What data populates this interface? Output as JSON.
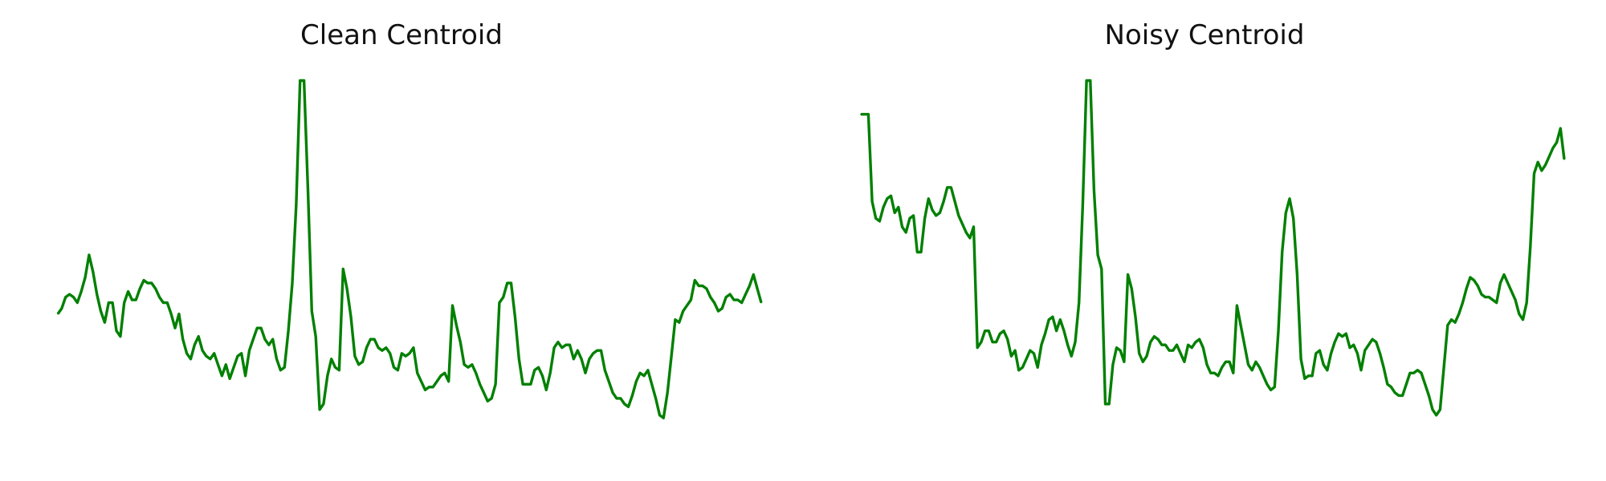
{
  "chart_data": [
    {
      "type": "line",
      "title": "Clean Centroid",
      "xlabel": "",
      "ylabel": "",
      "axes_visible": false,
      "grid": false,
      "ylim": [
        -0.3,
        1.0
      ],
      "series": [
        {
          "color": "#008000",
          "y": [
            0.16,
            0.18,
            0.22,
            0.23,
            0.22,
            0.2,
            0.24,
            0.29,
            0.37,
            0.31,
            0.23,
            0.17,
            0.13,
            0.2,
            0.2,
            0.1,
            0.08,
            0.2,
            0.24,
            0.21,
            0.21,
            0.25,
            0.28,
            0.27,
            0.27,
            0.25,
            0.22,
            0.2,
            0.2,
            0.16,
            0.11,
            0.16,
            0.07,
            0.02,
            0.0,
            0.05,
            0.08,
            0.03,
            0.01,
            0.0,
            0.02,
            -0.02,
            -0.06,
            -0.02,
            -0.07,
            -0.03,
            0.01,
            0.02,
            -0.06,
            0.03,
            0.07,
            0.11,
            0.11,
            0.07,
            0.05,
            0.07,
            0.0,
            -0.04,
            -0.03,
            0.1,
            0.27,
            0.55,
            0.99,
            0.99,
            0.6,
            0.17,
            0.08,
            -0.18,
            -0.16,
            -0.06,
            0.0,
            -0.03,
            -0.04,
            0.32,
            0.25,
            0.15,
            0.01,
            -0.02,
            -0.01,
            0.04,
            0.07,
            0.07,
            0.04,
            0.03,
            0.04,
            0.02,
            -0.03,
            -0.04,
            0.02,
            0.01,
            0.02,
            0.04,
            -0.05,
            -0.08,
            -0.11,
            -0.1,
            -0.1,
            -0.08,
            -0.06,
            -0.05,
            -0.08,
            0.19,
            0.12,
            0.06,
            -0.02,
            -0.03,
            -0.02,
            -0.05,
            -0.09,
            -0.12,
            -0.15,
            -0.14,
            -0.09,
            0.2,
            0.22,
            0.27,
            0.27,
            0.15,
            0.0,
            -0.09,
            -0.09,
            -0.09,
            -0.04,
            -0.03,
            -0.06,
            -0.11,
            -0.05,
            0.04,
            0.06,
            0.04,
            0.05,
            0.05,
            0.0,
            0.03,
            0.0,
            -0.05,
            0.0,
            0.02,
            0.03,
            0.03,
            -0.04,
            -0.08,
            -0.12,
            -0.14,
            -0.14,
            -0.16,
            -0.17,
            -0.13,
            -0.08,
            -0.05,
            -0.06,
            -0.04,
            -0.09,
            -0.14,
            -0.2,
            -0.21,
            -0.12,
            0.01,
            0.14,
            0.13,
            0.17,
            0.19,
            0.21,
            0.28,
            0.26,
            0.26,
            0.25,
            0.22,
            0.2,
            0.17,
            0.18,
            0.22,
            0.23,
            0.21,
            0.21,
            0.2,
            0.23,
            0.26,
            0.3,
            0.25,
            0.2
          ]
        }
      ]
    },
    {
      "type": "line",
      "title": "Noisy Centroid",
      "xlabel": "",
      "ylabel": "",
      "axes_visible": false,
      "grid": false,
      "ylim": [
        -0.3,
        1.0
      ],
      "series": [
        {
          "color": "#008000",
          "y": [
            0.87,
            0.87,
            0.87,
            0.56,
            0.5,
            0.49,
            0.54,
            0.57,
            0.58,
            0.52,
            0.54,
            0.47,
            0.45,
            0.5,
            0.51,
            0.38,
            0.38,
            0.5,
            0.57,
            0.53,
            0.51,
            0.52,
            0.56,
            0.61,
            0.61,
            0.56,
            0.51,
            0.48,
            0.45,
            0.43,
            0.47,
            0.04,
            0.06,
            0.1,
            0.1,
            0.06,
            0.06,
            0.09,
            0.1,
            0.07,
            0.01,
            0.03,
            -0.04,
            -0.03,
            0.0,
            0.03,
            0.02,
            -0.03,
            0.05,
            0.09,
            0.14,
            0.15,
            0.1,
            0.14,
            0.1,
            0.05,
            0.01,
            0.06,
            0.2,
            0.55,
            0.99,
            0.99,
            0.6,
            0.37,
            0.32,
            -0.16,
            -0.16,
            -0.02,
            0.04,
            0.03,
            -0.01,
            0.3,
            0.25,
            0.15,
            0.02,
            -0.01,
            0.01,
            0.06,
            0.08,
            0.07,
            0.05,
            0.05,
            0.03,
            0.03,
            0.05,
            0.02,
            -0.01,
            0.05,
            0.04,
            0.06,
            0.07,
            0.04,
            -0.02,
            -0.05,
            -0.05,
            -0.06,
            -0.03,
            -0.01,
            -0.01,
            -0.05,
            0.19,
            0.12,
            0.05,
            -0.02,
            -0.04,
            -0.01,
            -0.03,
            -0.06,
            -0.09,
            -0.11,
            -0.1,
            0.1,
            0.38,
            0.52,
            0.57,
            0.5,
            0.3,
            0.0,
            -0.07,
            -0.06,
            -0.06,
            0.02,
            0.03,
            -0.02,
            -0.04,
            0.02,
            0.06,
            0.09,
            0.08,
            0.09,
            0.04,
            0.05,
            0.02,
            -0.04,
            0.03,
            0.05,
            0.07,
            0.06,
            0.02,
            -0.03,
            -0.09,
            -0.1,
            -0.12,
            -0.13,
            -0.13,
            -0.09,
            -0.05,
            -0.05,
            -0.04,
            -0.05,
            -0.09,
            -0.13,
            -0.18,
            -0.2,
            -0.18,
            -0.03,
            0.12,
            0.14,
            0.13,
            0.16,
            0.2,
            0.25,
            0.29,
            0.28,
            0.26,
            0.23,
            0.22,
            0.22,
            0.21,
            0.2,
            0.27,
            0.3,
            0.27,
            0.24,
            0.21,
            0.16,
            0.14,
            0.2,
            0.4,
            0.66,
            0.7,
            0.67,
            0.69,
            0.72,
            0.75,
            0.77,
            0.82,
            0.71
          ]
        }
      ]
    }
  ]
}
